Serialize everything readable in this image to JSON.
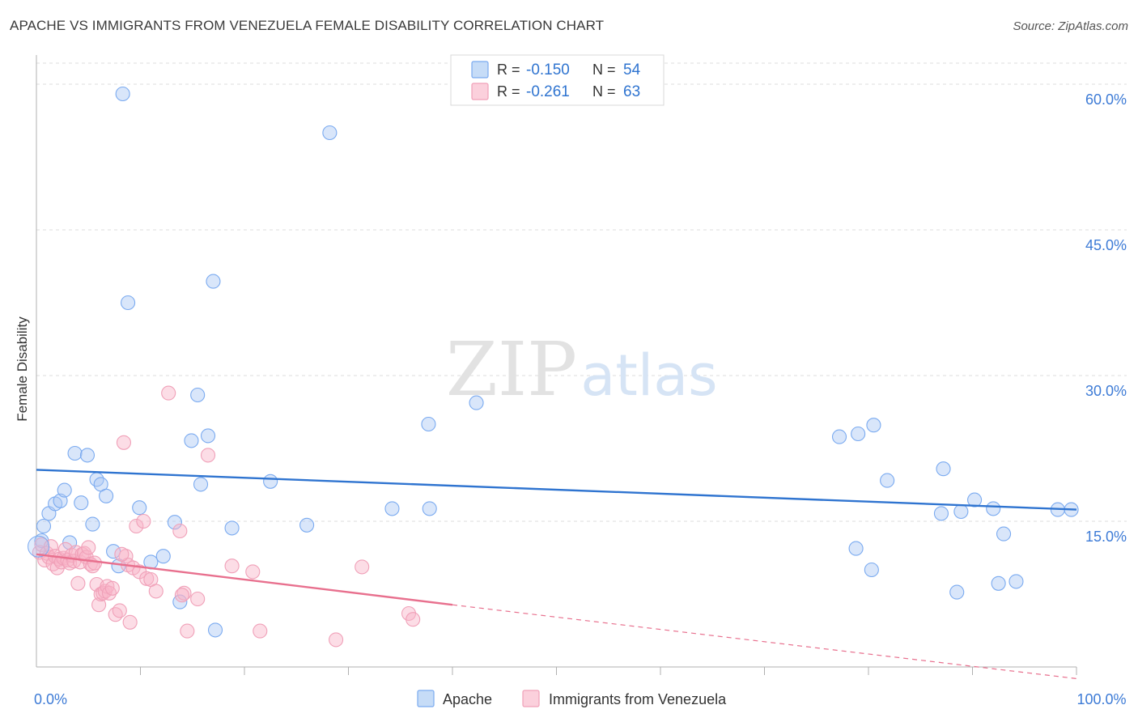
{
  "chart_data": {
    "type": "scatter",
    "title": "APACHE VS IMMIGRANTS FROM VENEZUELA FEMALE DISABILITY CORRELATION CHART",
    "source": "Source: ZipAtlas.com",
    "xlabel": "",
    "ylabel": "Female Disability",
    "xlim": [
      0,
      100
    ],
    "ylim": [
      0,
      63
    ],
    "x_tick_labels": [
      {
        "value": 0,
        "label": "0.0%"
      },
      {
        "value": 100,
        "label": "100.0%"
      }
    ],
    "y_tick_labels": [
      {
        "value": 15,
        "label": "15.0%"
      },
      {
        "value": 30,
        "label": "30.0%"
      },
      {
        "value": 45,
        "label": "45.0%"
      },
      {
        "value": 60,
        "label": "60.0%"
      }
    ],
    "grid": true,
    "watermark": {
      "part1": "ZIP",
      "part2": "atlas"
    },
    "legend_position": "top-center",
    "legend": [
      {
        "r_label": "R =",
        "r_value": "-0.150",
        "n_label": "N =",
        "n_value": "54"
      },
      {
        "r_label": "R =",
        "r_value": "-0.261",
        "n_label": "N =",
        "n_value": "63"
      }
    ],
    "series": [
      {
        "name": "Apache",
        "color": "#7aaaf0",
        "trend": {
          "x": [
            0,
            100
          ],
          "y": [
            20.3,
            16.2
          ],
          "color": "#2f74d0"
        },
        "points": [
          [
            0.5,
            13.0
          ],
          [
            0.7,
            14.5
          ],
          [
            1.2,
            15.8
          ],
          [
            1.8,
            16.8
          ],
          [
            2.3,
            17.1
          ],
          [
            2.7,
            18.2
          ],
          [
            3.2,
            12.8
          ],
          [
            3.7,
            22.0
          ],
          [
            4.3,
            16.9
          ],
          [
            4.9,
            21.8
          ],
          [
            5.4,
            14.7
          ],
          [
            5.8,
            19.3
          ],
          [
            6.2,
            18.8
          ],
          [
            6.7,
            17.6
          ],
          [
            7.4,
            11.9
          ],
          [
            7.9,
            10.4
          ],
          [
            8.3,
            59.0
          ],
          [
            8.8,
            37.5
          ],
          [
            9.9,
            16.4
          ],
          [
            11.0,
            10.8
          ],
          [
            12.2,
            11.4
          ],
          [
            13.3,
            14.9
          ],
          [
            13.8,
            6.7
          ],
          [
            14.9,
            23.3
          ],
          [
            15.5,
            28.0
          ],
          [
            15.8,
            18.8
          ],
          [
            16.5,
            23.8
          ],
          [
            17.0,
            39.7
          ],
          [
            17.2,
            3.8
          ],
          [
            18.8,
            14.3
          ],
          [
            22.5,
            19.1
          ],
          [
            26.0,
            14.6
          ],
          [
            28.2,
            55.0
          ],
          [
            34.2,
            16.3
          ],
          [
            37.7,
            25.0
          ],
          [
            37.8,
            16.3
          ],
          [
            42.3,
            27.2
          ],
          [
            77.2,
            23.7
          ],
          [
            78.8,
            12.2
          ],
          [
            79.0,
            24.0
          ],
          [
            80.3,
            10.0
          ],
          [
            80.5,
            24.9
          ],
          [
            81.8,
            19.2
          ],
          [
            87.0,
            15.8
          ],
          [
            87.2,
            20.4
          ],
          [
            88.5,
            7.7
          ],
          [
            88.9,
            16.0
          ],
          [
            90.2,
            17.2
          ],
          [
            92.0,
            16.3
          ],
          [
            92.5,
            8.6
          ],
          [
            93.0,
            13.7
          ],
          [
            94.2,
            8.8
          ],
          [
            98.2,
            16.2
          ],
          [
            99.5,
            16.2
          ]
        ]
      },
      {
        "name": "Immigrants from Venezuela",
        "color": "#f0a0b8",
        "trend": {
          "x": [
            0,
            40
          ],
          "y": [
            11.6,
            6.4
          ],
          "color": "#e8708e",
          "dash_to": {
            "x": 100,
            "y": -1.2
          }
        },
        "points": [
          [
            0.3,
            11.8
          ],
          [
            0.5,
            12.6
          ],
          [
            0.8,
            11.0
          ],
          [
            1.0,
            11.7
          ],
          [
            1.2,
            11.3
          ],
          [
            1.4,
            12.4
          ],
          [
            1.6,
            10.6
          ],
          [
            1.8,
            11.4
          ],
          [
            2.0,
            10.2
          ],
          [
            2.2,
            11.1
          ],
          [
            2.4,
            10.8
          ],
          [
            2.6,
            11.2
          ],
          [
            2.8,
            12.1
          ],
          [
            3.0,
            11.0
          ],
          [
            3.2,
            10.7
          ],
          [
            3.4,
            11.5
          ],
          [
            3.6,
            10.9
          ],
          [
            3.8,
            11.8
          ],
          [
            4.0,
            8.6
          ],
          [
            4.2,
            10.8
          ],
          [
            4.4,
            11.6
          ],
          [
            4.6,
            11.7
          ],
          [
            4.8,
            11.3
          ],
          [
            5.0,
            12.3
          ],
          [
            5.2,
            10.6
          ],
          [
            5.4,
            10.4
          ],
          [
            5.6,
            10.7
          ],
          [
            5.8,
            8.5
          ],
          [
            6.0,
            6.4
          ],
          [
            6.2,
            7.5
          ],
          [
            6.4,
            7.6
          ],
          [
            6.6,
            7.8
          ],
          [
            6.8,
            8.3
          ],
          [
            7.0,
            7.6
          ],
          [
            7.3,
            8.1
          ],
          [
            7.6,
            5.4
          ],
          [
            8.0,
            5.8
          ],
          [
            8.4,
            23.1
          ],
          [
            8.6,
            11.4
          ],
          [
            8.8,
            10.5
          ],
          [
            9.0,
            4.6
          ],
          [
            9.3,
            10.2
          ],
          [
            9.6,
            14.5
          ],
          [
            9.9,
            9.8
          ],
          [
            10.3,
            15.0
          ],
          [
            10.6,
            9.1
          ],
          [
            11.0,
            9.0
          ],
          [
            11.5,
            7.8
          ],
          [
            12.7,
            28.2
          ],
          [
            13.8,
            14.0
          ],
          [
            14.2,
            7.6
          ],
          [
            14.5,
            3.7
          ],
          [
            15.5,
            7.0
          ],
          [
            16.5,
            21.8
          ],
          [
            18.8,
            10.4
          ],
          [
            20.8,
            9.8
          ],
          [
            21.5,
            3.7
          ],
          [
            28.8,
            2.8
          ],
          [
            31.3,
            10.3
          ],
          [
            35.8,
            5.5
          ],
          [
            36.2,
            4.9
          ],
          [
            14.0,
            7.4
          ],
          [
            8.2,
            11.6
          ]
        ]
      }
    ]
  }
}
